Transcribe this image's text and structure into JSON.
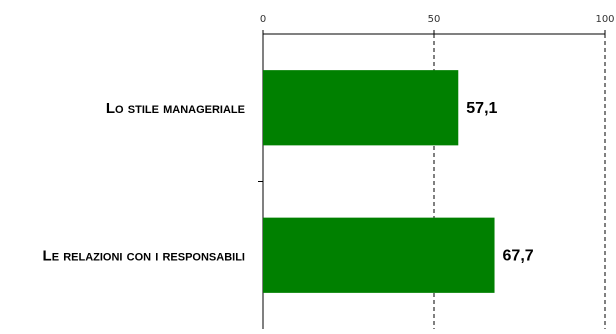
{
  "chart_data": {
    "type": "bar",
    "orientation": "horizontal",
    "categories": [
      "Lo stile manageriale",
      "Le relazioni con i responsabili"
    ],
    "values": [
      57.1,
      67.7
    ],
    "value_labels": [
      "57,1",
      "67,7"
    ],
    "xlim": [
      0,
      100
    ],
    "ticks": [
      0,
      50,
      100
    ],
    "tick_labels": [
      "0",
      "50",
      "100"
    ],
    "reference_lines": [
      50,
      100
    ],
    "bar_color": "#008000",
    "axis_position": "top",
    "grid": false,
    "title": "",
    "xlabel": "",
    "ylabel": ""
  }
}
